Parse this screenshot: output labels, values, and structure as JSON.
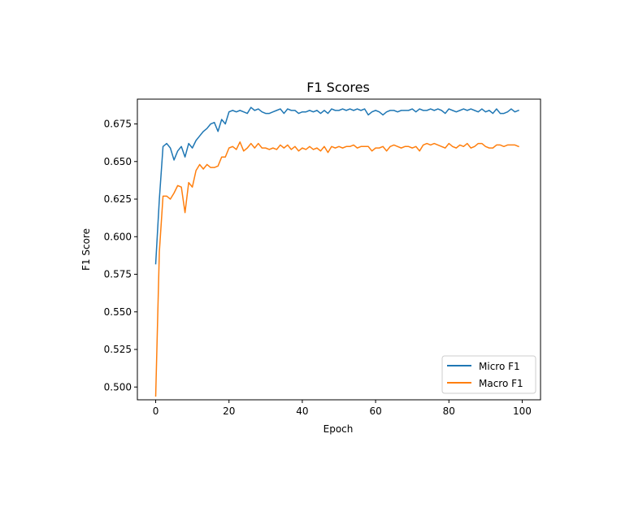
{
  "chart_data": {
    "type": "line",
    "title": "F1 Scores",
    "xlabel": "Epoch",
    "ylabel": "F1 Score",
    "xlim": [
      -5,
      105
    ],
    "ylim": [
      0.4915,
      0.6915
    ],
    "xticks": [
      0,
      20,
      40,
      60,
      80,
      100
    ],
    "yticks": [
      0.5,
      0.525,
      0.55,
      0.575,
      0.6,
      0.625,
      0.65,
      0.675
    ],
    "ytick_labels": [
      "0.500",
      "0.525",
      "0.550",
      "0.575",
      "0.600",
      "0.625",
      "0.650",
      "0.675"
    ],
    "grid": false,
    "legend_position": "lower-right",
    "x": [
      0,
      1,
      2,
      3,
      4,
      5,
      6,
      7,
      8,
      9,
      10,
      11,
      12,
      13,
      14,
      15,
      16,
      17,
      18,
      19,
      20,
      21,
      22,
      23,
      24,
      25,
      26,
      27,
      28,
      29,
      30,
      31,
      32,
      33,
      34,
      35,
      36,
      37,
      38,
      39,
      40,
      41,
      42,
      43,
      44,
      45,
      46,
      47,
      48,
      49,
      50,
      51,
      52,
      53,
      54,
      55,
      56,
      57,
      58,
      59,
      60,
      61,
      62,
      63,
      64,
      65,
      66,
      67,
      68,
      69,
      70,
      71,
      72,
      73,
      74,
      75,
      76,
      77,
      78,
      79,
      80,
      81,
      82,
      83,
      84,
      85,
      86,
      87,
      88,
      89,
      90,
      91,
      92,
      93,
      94,
      95,
      96,
      97,
      98,
      99
    ],
    "series": [
      {
        "name": "Micro F1",
        "color": "#1f77b4",
        "values": [
          0.582,
          0.625,
          0.66,
          0.662,
          0.659,
          0.651,
          0.657,
          0.66,
          0.653,
          0.662,
          0.659,
          0.664,
          0.667,
          0.67,
          0.672,
          0.675,
          0.676,
          0.67,
          0.678,
          0.675,
          0.683,
          0.684,
          0.683,
          0.684,
          0.683,
          0.682,
          0.686,
          0.684,
          0.685,
          0.683,
          0.682,
          0.682,
          0.683,
          0.684,
          0.685,
          0.682,
          0.685,
          0.684,
          0.684,
          0.682,
          0.683,
          0.683,
          0.684,
          0.683,
          0.684,
          0.682,
          0.684,
          0.682,
          0.685,
          0.684,
          0.684,
          0.685,
          0.684,
          0.685,
          0.684,
          0.685,
          0.684,
          0.685,
          0.681,
          0.683,
          0.684,
          0.683,
          0.681,
          0.683,
          0.684,
          0.684,
          0.683,
          0.684,
          0.684,
          0.684,
          0.685,
          0.683,
          0.685,
          0.684,
          0.684,
          0.685,
          0.684,
          0.685,
          0.684,
          0.682,
          0.685,
          0.684,
          0.683,
          0.684,
          0.685,
          0.684,
          0.685,
          0.684,
          0.683,
          0.685,
          0.683,
          0.684,
          0.682,
          0.685,
          0.682,
          0.682,
          0.683,
          0.685,
          0.683,
          0.684
        ]
      },
      {
        "name": "Macro F1",
        "color": "#ff7f0e",
        "values": [
          0.494,
          0.59,
          0.627,
          0.627,
          0.625,
          0.629,
          0.634,
          0.633,
          0.616,
          0.636,
          0.633,
          0.644,
          0.648,
          0.645,
          0.648,
          0.646,
          0.646,
          0.647,
          0.653,
          0.653,
          0.659,
          0.66,
          0.658,
          0.663,
          0.657,
          0.659,
          0.662,
          0.659,
          0.662,
          0.659,
          0.659,
          0.658,
          0.659,
          0.658,
          0.661,
          0.659,
          0.661,
          0.658,
          0.66,
          0.657,
          0.659,
          0.658,
          0.66,
          0.658,
          0.659,
          0.657,
          0.66,
          0.656,
          0.66,
          0.659,
          0.66,
          0.659,
          0.66,
          0.66,
          0.661,
          0.659,
          0.66,
          0.66,
          0.66,
          0.657,
          0.659,
          0.659,
          0.66,
          0.657,
          0.66,
          0.661,
          0.66,
          0.659,
          0.66,
          0.66,
          0.659,
          0.66,
          0.657,
          0.661,
          0.662,
          0.661,
          0.662,
          0.661,
          0.66,
          0.659,
          0.662,
          0.66,
          0.659,
          0.661,
          0.66,
          0.662,
          0.659,
          0.66,
          0.662,
          0.662,
          0.66,
          0.659,
          0.659,
          0.661,
          0.661,
          0.66,
          0.661,
          0.661,
          0.661,
          0.66
        ]
      }
    ]
  }
}
